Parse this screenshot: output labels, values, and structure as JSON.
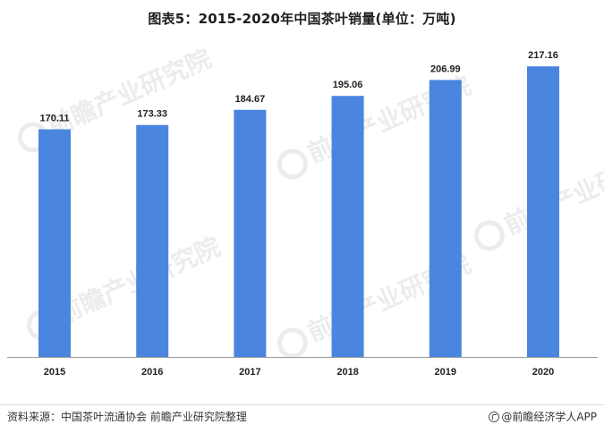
{
  "title": "图表5：2015-2020年中国茶叶销量(单位：万吨)",
  "source": "资料来源：中国茶叶流通协会 前瞻产业研究院整理",
  "brand": "@前瞻经济学人APP",
  "watermark": "前瞻产业研究院",
  "colors": {
    "bar": "#4a86e0"
  },
  "chart_data": {
    "type": "bar",
    "title": "图表5：2015-2020年中国茶叶销量(单位：万吨)",
    "categories": [
      "2015",
      "2016",
      "2017",
      "2018",
      "2019",
      "2020"
    ],
    "values": [
      170.11,
      173.33,
      184.67,
      195.06,
      206.99,
      217.16
    ],
    "value_labels": [
      "170.11",
      "173.33",
      "184.67",
      "195.06",
      "206.99",
      "217.16"
    ],
    "xlabel": "",
    "ylabel": "",
    "ylim": [
      0,
      240
    ],
    "grid": false,
    "legend": "none"
  }
}
